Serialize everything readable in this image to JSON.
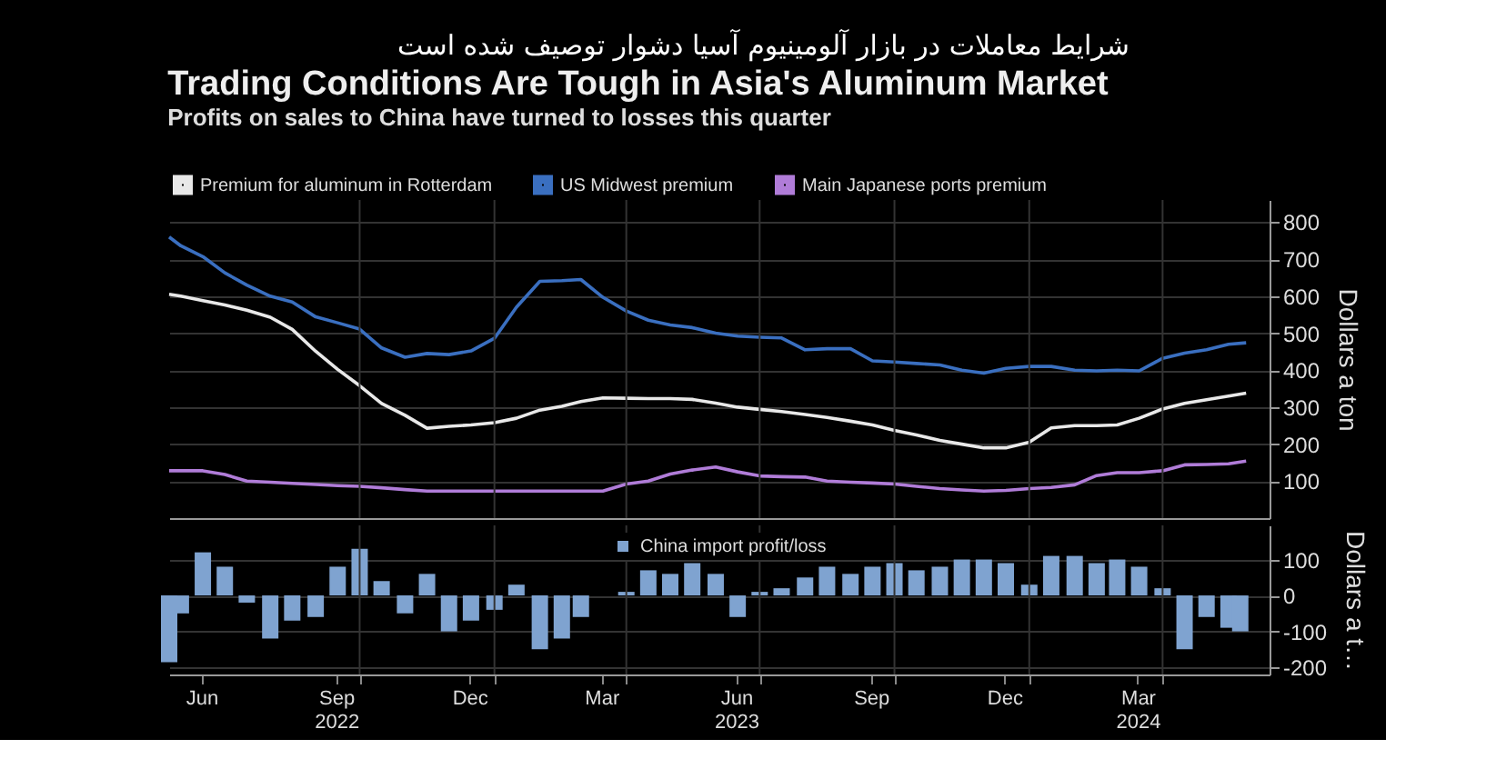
{
  "chart_data": [
    {
      "type": "line",
      "title": "Trading Conditions Are Tough in Asia's Aluminum Market",
      "subtitle": "Profits on sales to China have turned to losses this quarter",
      "annotations": [
        "شرایط معاملات در بازار آلومینیوم آسیا دشوار توصیف شده است"
      ],
      "y2label": "Dollars a ton",
      "x": [
        "2022-05-24",
        "2022-06-01",
        "2022-06-16",
        "2022-07-01",
        "2022-07-16",
        "2022-08-01",
        "2022-08-16",
        "2022-09-01",
        "2022-09-16",
        "2022-10-01",
        "2022-10-16",
        "2022-11-01",
        "2022-11-16",
        "2022-12-01",
        "2022-12-16",
        "2023-01-01",
        "2023-01-16",
        "2023-02-01",
        "2023-02-16",
        "2023-03-01",
        "2023-03-16",
        "2023-04-01",
        "2023-04-16",
        "2023-05-01",
        "2023-05-16",
        "2023-06-01",
        "2023-06-16",
        "2023-07-01",
        "2023-07-16",
        "2023-08-01",
        "2023-08-16",
        "2023-09-01",
        "2023-09-16",
        "2023-10-01",
        "2023-10-16",
        "2023-11-01",
        "2023-11-16",
        "2023-12-01",
        "2023-12-16",
        "2024-01-01",
        "2024-01-16",
        "2024-02-01",
        "2024-02-16",
        "2024-03-01",
        "2024-03-16",
        "2024-04-01",
        "2024-04-16",
        "2024-05-01",
        "2024-05-16",
        "2024-05-28"
      ],
      "series": [
        {
          "name": "Premium for aluminum in Rotterdam",
          "color": "#e8e8e8",
          "values": [
            605,
            600,
            588,
            576,
            562,
            543,
            510,
            451,
            402,
            358,
            310,
            278,
            243,
            248,
            252,
            258,
            270,
            292,
            302,
            315,
            325,
            324,
            323,
            323,
            321,
            311,
            300,
            294,
            288,
            280,
            272,
            262,
            252,
            237,
            225,
            210,
            200,
            190,
            190,
            205,
            244,
            250,
            250,
            252,
            270,
            295,
            310,
            320,
            330,
            338
          ]
        },
        {
          "name": "US Midwest premium",
          "color": "#3a6fc0",
          "values": [
            760,
            736,
            707,
            663,
            630,
            600,
            584,
            544,
            528,
            511,
            460,
            435,
            445,
            442,
            452,
            486,
            570,
            640,
            642,
            645,
            597,
            560,
            535,
            522,
            515,
            500,
            492,
            489,
            487,
            455,
            458,
            458,
            425,
            422,
            418,
            414,
            400,
            392,
            405,
            410,
            410,
            400,
            398,
            400,
            398,
            432,
            446,
            455,
            470,
            474
          ]
        },
        {
          "name": "Main Japanese ports premium",
          "color": "#b07cd8",
          "values": [
            128,
            128,
            128,
            118,
            100,
            97,
            94,
            91,
            88,
            86,
            82,
            77,
            73,
            73,
            73,
            73,
            73,
            73,
            73,
            73,
            73,
            92,
            100,
            119,
            130,
            138,
            125,
            114,
            112,
            111,
            100,
            97,
            95,
            92,
            86,
            80,
            76,
            73,
            75,
            80,
            83,
            90,
            115,
            123,
            123,
            128,
            144,
            145,
            147,
            154
          ]
        }
      ],
      "xlim": [
        "2022-05-24",
        "2024-06-13"
      ],
      "xticks": [
        {
          "value": "2022-10-01",
          "label": null
        },
        {
          "value": "2023-01-01",
          "label": null
        },
        {
          "value": "2023-04-01",
          "label": null
        },
        {
          "value": "2023-07-01",
          "label": null
        },
        {
          "value": "2023-10-01",
          "label": null
        },
        {
          "value": "2024-01-01",
          "label": null
        },
        {
          "value": "2024-04-01",
          "label": null
        }
      ],
      "ylim": [
        0,
        860
      ],
      "yticks": [
        100,
        200,
        300,
        400,
        500,
        600,
        700,
        800
      ],
      "tick_labels": "y",
      "grid": true,
      "legend": "top left"
    },
    {
      "type": "bar",
      "y2label": "Dollars a t…",
      "x": [
        "2022-05-24",
        "2022-06-01",
        "2022-06-16",
        "2022-07-01",
        "2022-07-16",
        "2022-08-01",
        "2022-08-16",
        "2022-09-01",
        "2022-09-16",
        "2022-10-01",
        "2022-10-16",
        "2022-11-01",
        "2022-11-16",
        "2022-12-01",
        "2022-12-16",
        "2023-01-01",
        "2023-01-16",
        "2023-02-01",
        "2023-02-16",
        "2023-03-01",
        "2023-03-16",
        "2023-04-01",
        "2023-04-16",
        "2023-05-01",
        "2023-05-16",
        "2023-06-01",
        "2023-06-16",
        "2023-07-01",
        "2023-07-16",
        "2023-08-01",
        "2023-08-16",
        "2023-09-01",
        "2023-09-16",
        "2023-10-01",
        "2023-10-16",
        "2023-11-01",
        "2023-11-16",
        "2023-12-01",
        "2023-12-16",
        "2024-01-01",
        "2024-01-16",
        "2024-02-01",
        "2024-02-16",
        "2024-03-01",
        "2024-03-16",
        "2024-04-01",
        "2024-04-16",
        "2024-05-01",
        "2024-05-16",
        "2024-05-24"
      ],
      "series": [
        {
          "name": "China import profit/loss",
          "color": "#7fa3d0",
          "values": [
            -186,
            -50,
            120,
            80,
            -20,
            -120,
            -70,
            -60,
            80,
            130,
            40,
            -50,
            60,
            -100,
            -70,
            -40,
            30,
            -150,
            -120,
            -60,
            0,
            10,
            70,
            60,
            90,
            60,
            -60,
            10,
            20,
            50,
            80,
            60,
            80,
            90,
            70,
            80,
            100,
            100,
            90,
            30,
            110,
            110,
            90,
            100,
            80,
            20,
            -150,
            -60,
            -90,
            -100
          ]
        }
      ],
      "xlim": [
        "2022-05-24",
        "2024-06-13"
      ],
      "xticks": [
        {
          "value": "2022-06-15",
          "label": "Jun"
        },
        {
          "value": "2022-09-15",
          "label": "Sep\n2022"
        },
        {
          "value": "2022-12-15",
          "label": "Dec"
        },
        {
          "value": "2023-03-15",
          "label": "Mar"
        },
        {
          "value": "2023-06-15",
          "label": "Jun\n2023"
        },
        {
          "value": "2023-09-15",
          "label": "Sep"
        },
        {
          "value": "2023-12-15",
          "label": "Dec"
        },
        {
          "value": "2024-03-15",
          "label": "Mar\n2024"
        },
        {
          "value": "2022-10-01",
          "label": null
        },
        {
          "value": "2023-01-01",
          "label": null
        },
        {
          "value": "2023-04-01",
          "label": null
        },
        {
          "value": "2023-07-01",
          "label": null
        },
        {
          "value": "2023-10-01",
          "label": null
        },
        {
          "value": "2024-01-01",
          "label": null
        },
        {
          "value": "2024-04-01",
          "label": null
        }
      ],
      "ylim": [
        -220,
        195
      ],
      "yticks": [
        -200,
        -100,
        0,
        100
      ],
      "grid": true,
      "legend": "top"
    }
  ]
}
